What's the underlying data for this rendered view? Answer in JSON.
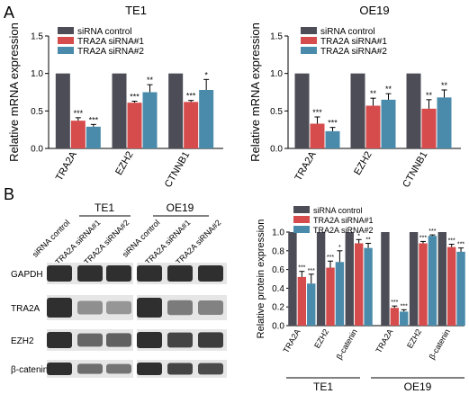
{
  "panel_labels": {
    "a": "A",
    "b": "B"
  },
  "colors": {
    "control": "#4d4d57",
    "sirna1": "#d64b4b",
    "sirna2": "#4a8bab",
    "band": "#2f2f2f",
    "blot_bg": "#e6e6e6"
  },
  "legend": [
    "siRNA control",
    "TRA2A siRNA#1",
    "TRA2A siRNA#2"
  ],
  "blot": {
    "groups": [
      "TE1",
      "OE19"
    ],
    "lanes": [
      "siRNA control",
      "TRA2A siRNA#1",
      "TRA2A siRNA#2",
      "siRNA control",
      "TRA2A siRNA#1",
      "TRA2A siRNA#2"
    ],
    "rows": [
      "GAPDH",
      "TRA2A",
      "EZH2",
      "β-catenin"
    ],
    "intensity": [
      [
        1,
        1,
        1,
        1,
        1,
        1
      ],
      [
        1,
        0.3,
        0.25,
        1,
        0.45,
        0.4
      ],
      [
        1,
        0.6,
        0.65,
        1,
        0.85,
        0.9
      ],
      [
        1,
        0.55,
        0.5,
        1,
        0.85,
        0.8
      ]
    ]
  },
  "chart_data": [
    {
      "type": "bar",
      "title": "TE1",
      "ylabel": "Relative mRNA expression",
      "categories": [
        "TRA2A",
        "EZH2",
        "CTNNB1"
      ],
      "ylim": [
        0,
        1.5
      ],
      "yticks": [
        "0.0",
        "0.5",
        "1.0",
        "1.5"
      ],
      "series": [
        {
          "name": "siRNA control",
          "values": [
            1.0,
            1.0,
            1.0
          ],
          "errors": [
            0,
            0,
            0
          ]
        },
        {
          "name": "TRA2A siRNA#1",
          "values": [
            0.37,
            0.61,
            0.62
          ],
          "errors": [
            0.04,
            0.02,
            0.02
          ]
        },
        {
          "name": "TRA2A siRNA#2",
          "values": [
            0.29,
            0.75,
            0.78
          ],
          "errors": [
            0.03,
            0.1,
            0.14
          ]
        }
      ],
      "significance": [
        [
          "",
          "***",
          "***"
        ],
        [
          "",
          "***",
          "**"
        ],
        [
          "",
          "***",
          "*"
        ]
      ]
    },
    {
      "type": "bar",
      "title": "OE19",
      "ylabel": "Relative mRNA expression",
      "categories": [
        "TRA2A",
        "EZH2",
        "CTNNB1"
      ],
      "ylim": [
        0,
        1.5
      ],
      "yticks": [
        "0.0",
        "0.5",
        "1.0",
        "1.5"
      ],
      "series": [
        {
          "name": "siRNA control",
          "values": [
            1.0,
            1.0,
            1.0
          ],
          "errors": [
            0,
            0,
            0
          ]
        },
        {
          "name": "TRA2A siRNA#1",
          "values": [
            0.33,
            0.57,
            0.53
          ],
          "errors": [
            0.09,
            0.1,
            0.12
          ]
        },
        {
          "name": "TRA2A siRNA#2",
          "values": [
            0.23,
            0.65,
            0.68
          ],
          "errors": [
            0.05,
            0.08,
            0.1
          ]
        }
      ],
      "significance": [
        [
          "",
          "***",
          "***"
        ],
        [
          "",
          "**",
          "**"
        ],
        [
          "",
          "**",
          "**"
        ]
      ]
    },
    {
      "type": "bar",
      "ylabel": "Relative protein expression",
      "groups": [
        "TE1",
        "OE19"
      ],
      "categories": [
        "TRA2A",
        "EZH2",
        "β-catenin",
        "TRA2A",
        "EZH2",
        "β-catenin"
      ],
      "ylim": [
        0,
        1.0
      ],
      "yticks": [
        "0.0",
        "0.2",
        "0.4",
        "0.6",
        "0.8",
        "1.0"
      ],
      "series": [
        {
          "name": "siRNA control",
          "values": [
            1.0,
            1.0,
            1.0,
            1.0,
            1.0,
            1.0
          ],
          "errors": [
            0,
            0,
            0,
            0,
            0,
            0
          ]
        },
        {
          "name": "TRA2A siRNA#1",
          "values": [
            0.52,
            0.62,
            0.88,
            0.19,
            0.88,
            0.84
          ],
          "errors": [
            0.06,
            0.07,
            0.04,
            0.02,
            0.02,
            0.03
          ]
        },
        {
          "name": "TRA2A siRNA#2",
          "values": [
            0.45,
            0.68,
            0.83,
            0.15,
            0.96,
            0.79
          ],
          "errors": [
            0.1,
            0.12,
            0.05,
            0.02,
            0.01,
            0.04
          ]
        }
      ],
      "significance": [
        [
          "",
          "***",
          "***"
        ],
        [
          "",
          "***",
          "*"
        ],
        [
          "",
          "*",
          "**"
        ],
        [
          "",
          "***",
          "***"
        ],
        [
          "",
          "***",
          "***"
        ],
        [
          "",
          "***",
          "***"
        ]
      ]
    }
  ]
}
